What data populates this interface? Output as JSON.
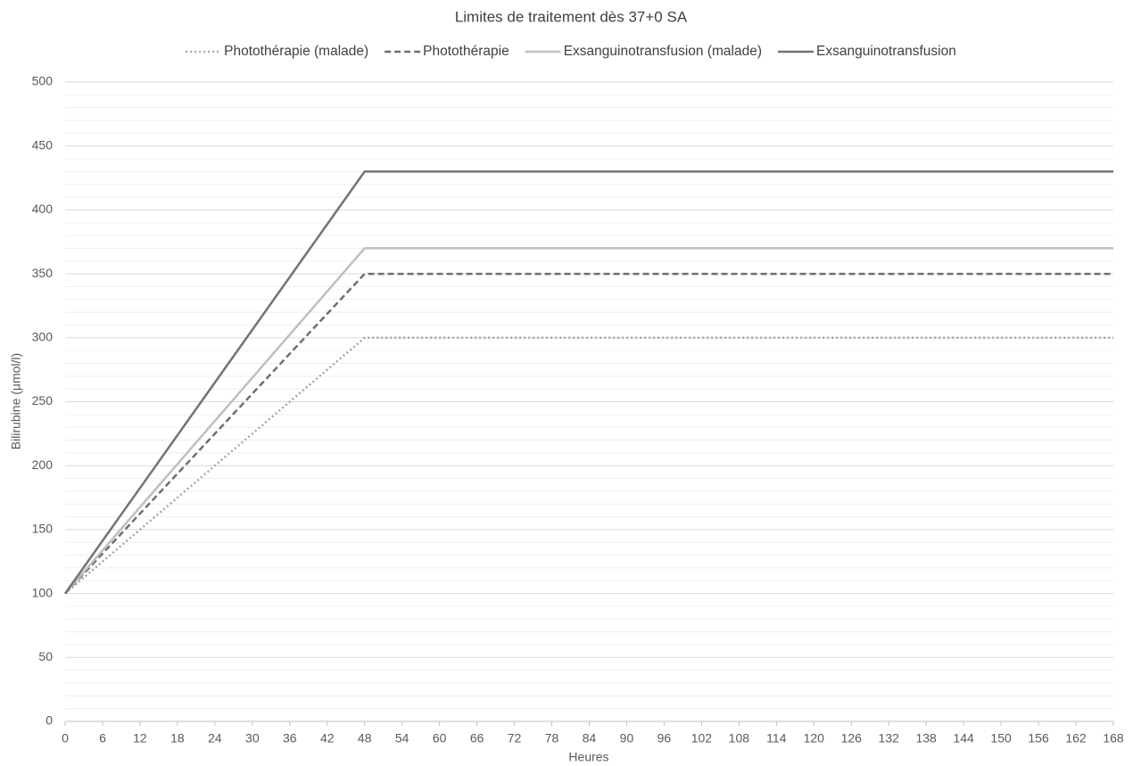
{
  "chart_data": {
    "type": "line",
    "title": "Limites de traitement dès 37+0 SA",
    "x_label": "Heures",
    "y_label": "Bilirubine (µmol/l)",
    "x": [
      0,
      48,
      168
    ],
    "series": [
      {
        "name": "Photothérapie (malade)",
        "color": "#a6a6a6",
        "dash": "dotted",
        "values": [
          100,
          300,
          300
        ]
      },
      {
        "name": "Photothérapie",
        "color": "#6f6f6f",
        "dash": "dashed",
        "values": [
          100,
          350,
          350
        ]
      },
      {
        "name": "Exsanguinotransfusion (malade)",
        "color": "#bfbfbf",
        "dash": "solid",
        "values": [
          100,
          370,
          370
        ]
      },
      {
        "name": "Exsanguinotransfusion",
        "color": "#737373",
        "dash": "solid",
        "values": [
          100,
          430,
          430
        ]
      }
    ],
    "xlim": [
      0,
      168
    ],
    "xticks": [
      0,
      6,
      12,
      18,
      24,
      30,
      36,
      42,
      48,
      54,
      60,
      66,
      72,
      78,
      84,
      90,
      96,
      102,
      108,
      114,
      120,
      126,
      132,
      138,
      144,
      150,
      156,
      162,
      168
    ],
    "ylim": [
      0,
      500
    ],
    "yticks": [
      0,
      50,
      100,
      150,
      200,
      250,
      300,
      350,
      400,
      450,
      500
    ],
    "grid": true,
    "minor_grid": true,
    "legend": "top"
  }
}
